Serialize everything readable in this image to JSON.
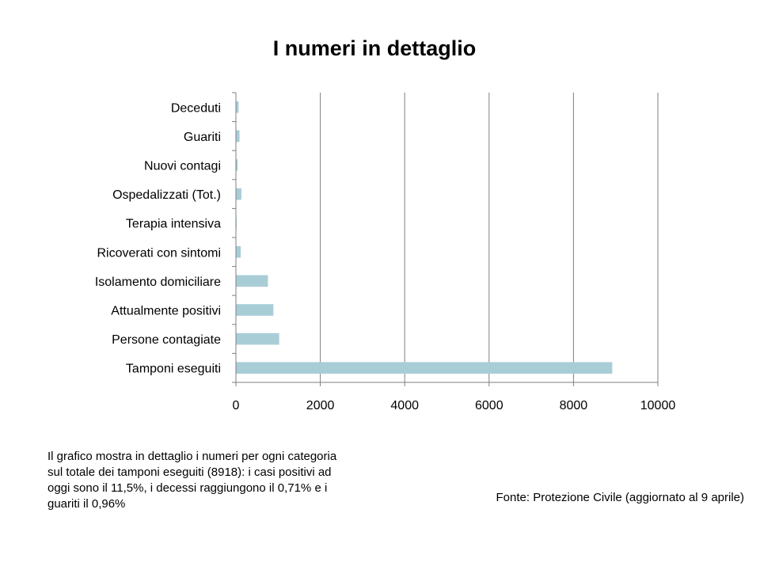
{
  "chart_data": {
    "type": "bar",
    "orientation": "horizontal",
    "title": "I numeri in dettaglio",
    "categories": [
      "Deceduti",
      "Guariti",
      "Nuovi contagi",
      "Ospedalizzati (Tot.)",
      "Terapia intensiva",
      "Ricoverati con sintomi",
      "Isolamento domiciliare",
      "Attualmente positivi",
      "Persone contagiate",
      "Tamponi eseguiti"
    ],
    "values": [
      63,
      86,
      40,
      130,
      16,
      114,
      758,
      888,
      1025,
      8918
    ],
    "xlim": [
      0,
      10000
    ],
    "xticks": [
      0,
      2000,
      4000,
      6000,
      8000,
      10000
    ],
    "grid": "vertical",
    "legend": "none",
    "bar_color": "#a9cdd7"
  },
  "note": "Il grafico mostra in dettaglio i numeri per ogni categoria sul totale dei tamponi eseguiti (8918): i casi positivi ad oggi sono il 11,5%, i decessi raggiungono il 0,71% e i guariti il 0,96%",
  "source": "Fonte: Protezione Civile (aggiornato al 9 aprile)"
}
